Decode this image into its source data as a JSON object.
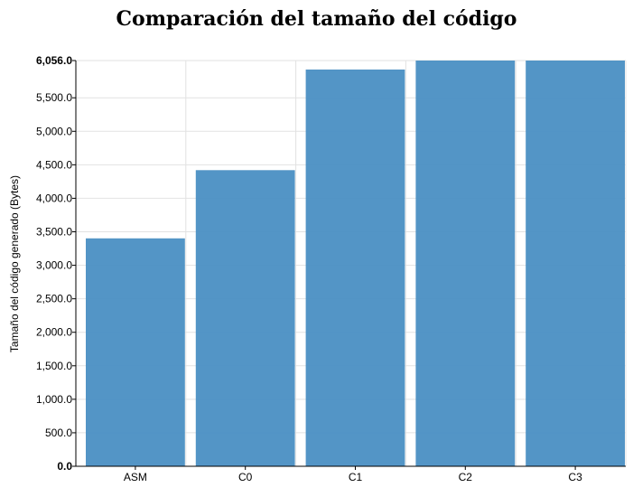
{
  "chart_data": {
    "type": "bar",
    "title": "Comparación del tamaño del código",
    "xlabel": "",
    "ylabel": "Tamaño del código generado (Bytes)",
    "categories": [
      "ASM",
      "C0",
      "C1",
      "C2",
      "C3"
    ],
    "values": [
      3402,
      4420,
      5922,
      6056,
      6056
    ],
    "ylim": [
      0,
      6056
    ],
    "yticks": [
      0,
      500,
      1000,
      1500,
      2000,
      2500,
      3000,
      3500,
      4000,
      4500,
      5000,
      5500,
      6056
    ],
    "ytick_labels": [
      "0.0",
      "500.0",
      "1,000.0",
      "1,500.0",
      "2,000.0",
      "2,500.0",
      "3,000.0",
      "3,500.0",
      "4,000.0",
      "4,500.0",
      "5,000.0",
      "5,500.0",
      "6,056.0"
    ],
    "bold_ticks": [
      "0.0",
      "6,056.0"
    ],
    "grid": true,
    "bar_color": "#4a8fc3"
  }
}
